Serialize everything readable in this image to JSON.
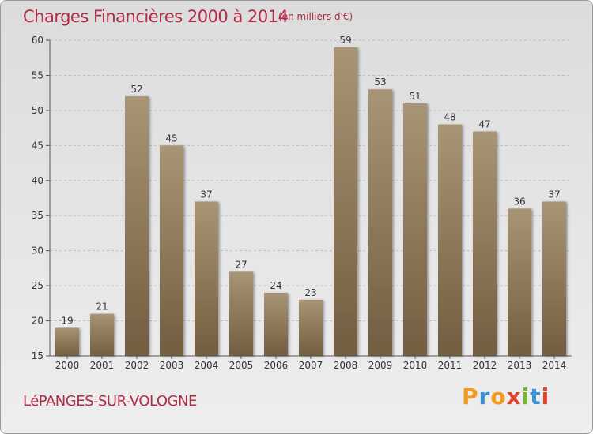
{
  "header": {
    "title": "Charges Financières 2000 à 2014",
    "subtitle": "(en milliers d'€)"
  },
  "footer": {
    "commune": "LéPANGES-SUR-VOLOGNE",
    "logo_letters": [
      "P",
      "r",
      "o",
      "x",
      "i",
      "t",
      "i"
    ],
    "logo_colors": [
      "#f29a1d",
      "#3a8fd6",
      "#f29a1d",
      "#e2412e",
      "#7ab52f",
      "#3a8fd6",
      "#e2412e"
    ]
  },
  "colors": {
    "bar_top": "#a89575",
    "bar_bottom": "#735d40",
    "title": "#b22a45",
    "axis": "#555555",
    "grid": "#bdbdbd"
  },
  "chart_data": {
    "type": "bar",
    "title": "Charges Financières 2000 à 2014",
    "subtitle": "(en milliers d'€)",
    "categories": [
      "2000",
      "2001",
      "2002",
      "2003",
      "2004",
      "2005",
      "2006",
      "2007",
      "2008",
      "2009",
      "2010",
      "2011",
      "2012",
      "2013",
      "2014"
    ],
    "values": [
      19,
      21,
      52,
      45,
      37,
      27,
      24,
      23,
      59,
      53,
      51,
      48,
      47,
      36,
      37
    ],
    "ylim": [
      15,
      60
    ],
    "yticks": [
      15,
      20,
      25,
      30,
      35,
      40,
      45,
      50,
      55,
      60
    ],
    "grid": true
  }
}
